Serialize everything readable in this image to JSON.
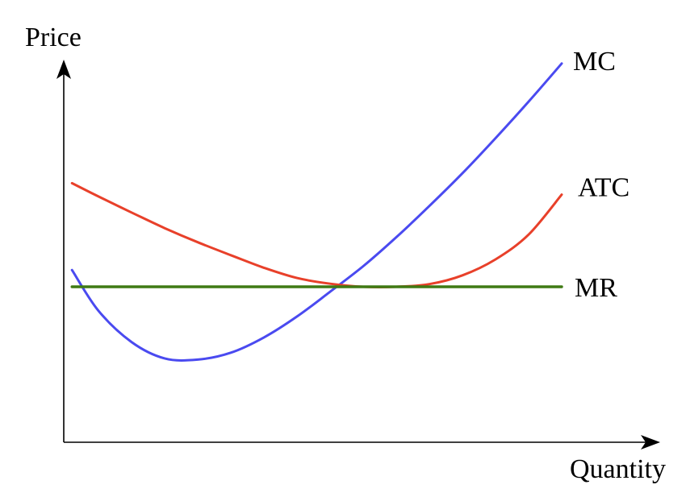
{
  "chart_data": {
    "type": "line",
    "xlabel": "Quantity",
    "ylabel": "Price",
    "grid": false,
    "ticks": "none",
    "xlim": [
      0,
      10
    ],
    "ylim": [
      0,
      10
    ],
    "series": [
      {
        "name": "MC",
        "color": "#4a4af0",
        "x": [
          0.6,
          1.0,
          1.5,
          2.0,
          2.5,
          3.0,
          3.5,
          4.0,
          4.5,
          5.0,
          5.5,
          6.0,
          6.5,
          7.0,
          7.5,
          8.0
        ],
        "y": [
          4.52,
          3.45,
          2.63,
          2.2,
          2.17,
          2.35,
          2.75,
          3.3,
          3.95,
          4.62,
          5.38,
          6.2,
          7.06,
          7.98,
          8.94,
          9.94
        ]
      },
      {
        "name": "ATC",
        "color": "#e8402a",
        "x": [
          0.6,
          1.0,
          1.5,
          2.0,
          2.5,
          3.0,
          3.5,
          4.0,
          4.5,
          5.0,
          5.5,
          6.0,
          6.5,
          7.0,
          7.5,
          8.0
        ],
        "y": [
          6.8,
          6.45,
          6.03,
          5.62,
          5.25,
          4.91,
          4.58,
          4.31,
          4.16,
          4.08,
          4.08,
          4.15,
          4.38,
          4.8,
          5.45,
          6.5
        ]
      },
      {
        "name": "MR",
        "color": "#3f7a14",
        "x": [
          0.6,
          8.0
        ],
        "y": [
          4.08,
          4.08
        ]
      }
    ]
  }
}
